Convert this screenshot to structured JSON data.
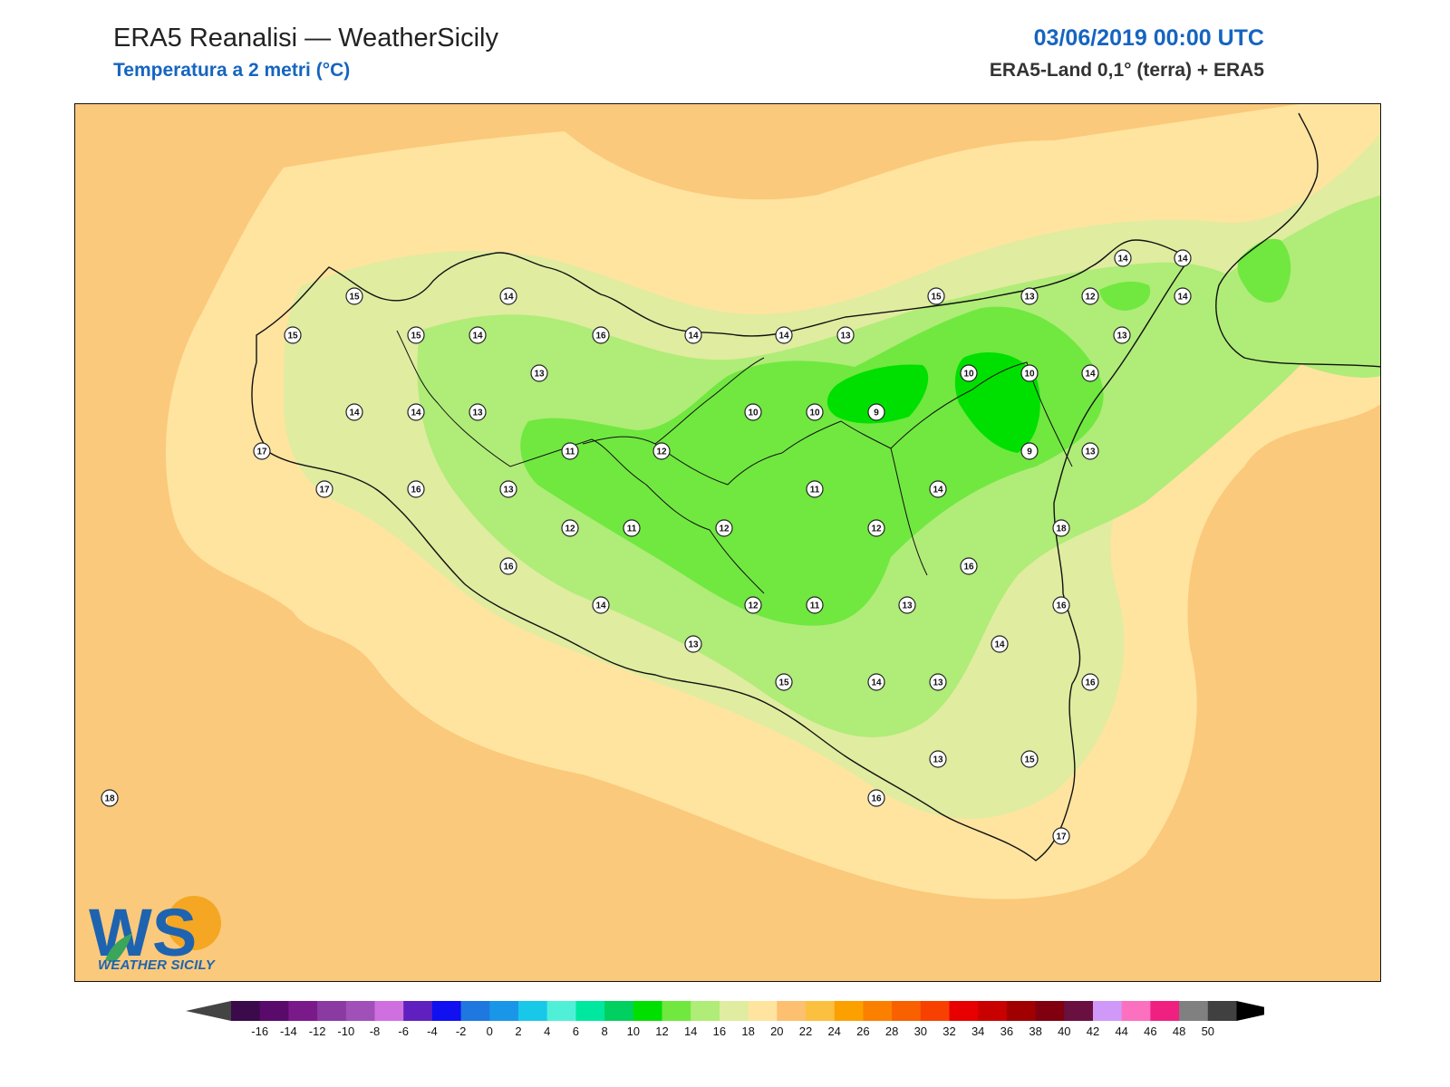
{
  "header": {
    "title": "ERA5 Reanalisi — WeatherSicily",
    "subtitle": "Temperatura a 2 metri (°C)",
    "datetime": "03/06/2019 00:00 UTC",
    "source": "ERA5-Land 0,1° (terra) + ERA5"
  },
  "logo": {
    "text": "WS",
    "caption": "WEATHER SICILY"
  },
  "stations": [
    {
      "v": "15"
    },
    {
      "v": "14"
    },
    {
      "v": "15"
    },
    {
      "v": "15"
    },
    {
      "v": "14"
    },
    {
      "v": "16"
    },
    {
      "v": "14"
    },
    {
      "v": "14"
    },
    {
      "v": "13"
    },
    {
      "v": "15"
    },
    {
      "v": "13"
    },
    {
      "v": "12"
    },
    {
      "v": "14"
    },
    {
      "v": "14"
    },
    {
      "v": "14"
    },
    {
      "v": "13"
    },
    {
      "v": "13"
    },
    {
      "v": "10"
    },
    {
      "v": "10"
    },
    {
      "v": "14"
    },
    {
      "v": "14"
    },
    {
      "v": "14"
    },
    {
      "v": "13"
    },
    {
      "v": "10"
    },
    {
      "v": "10"
    },
    {
      "v": "9"
    },
    {
      "v": "17"
    },
    {
      "v": "11"
    },
    {
      "v": "12"
    },
    {
      "v": "9"
    },
    {
      "v": "13"
    },
    {
      "v": "17"
    },
    {
      "v": "16"
    },
    {
      "v": "13"
    },
    {
      "v": "11"
    },
    {
      "v": "14"
    },
    {
      "v": "12"
    },
    {
      "v": "11"
    },
    {
      "v": "12"
    },
    {
      "v": "12"
    },
    {
      "v": "18"
    },
    {
      "v": "16"
    },
    {
      "v": "16"
    },
    {
      "v": "14"
    },
    {
      "v": "12"
    },
    {
      "v": "11"
    },
    {
      "v": "13"
    },
    {
      "v": "16"
    },
    {
      "v": "13"
    },
    {
      "v": "14"
    },
    {
      "v": "15"
    },
    {
      "v": "14"
    },
    {
      "v": "13"
    },
    {
      "v": "16"
    },
    {
      "v": "13"
    },
    {
      "v": "15"
    },
    {
      "v": "18"
    },
    {
      "v": "16"
    },
    {
      "v": "17"
    }
  ],
  "colorbar": {
    "labels": [
      "-16",
      "-14",
      "-12",
      "-10",
      "-8",
      "-6",
      "-4",
      "-2",
      "0",
      "2",
      "4",
      "6",
      "8",
      "10",
      "12",
      "14",
      "16",
      "18",
      "20",
      "22",
      "24",
      "26",
      "28",
      "30",
      "32",
      "34",
      "36",
      "38",
      "40",
      "42",
      "44",
      "46",
      "48",
      "50"
    ],
    "colors": [
      "#3a0a4a",
      "#5a0a6a",
      "#7a1a8a",
      "#8a3aa0",
      "#a050b8",
      "#d070e0",
      "#6020c0",
      "#1010f0",
      "#1e78e0",
      "#1a96e8",
      "#18c8e8",
      "#50f0d8",
      "#00e8a0",
      "#00d060",
      "#00e000",
      "#70e840",
      "#b0ec78",
      "#e0eca0",
      "#ffe4a0",
      "#fcc070",
      "#fcc040",
      "#fca000",
      "#fc8000",
      "#f86000",
      "#f84000",
      "#e80000",
      "#c80000",
      "#a00000",
      "#800010",
      "#6a1040",
      "#d098f8",
      "#fc70c0",
      "#f02080",
      "#808080",
      "#404040"
    ],
    "under_color": "#444444",
    "over_color": "#000000"
  }
}
